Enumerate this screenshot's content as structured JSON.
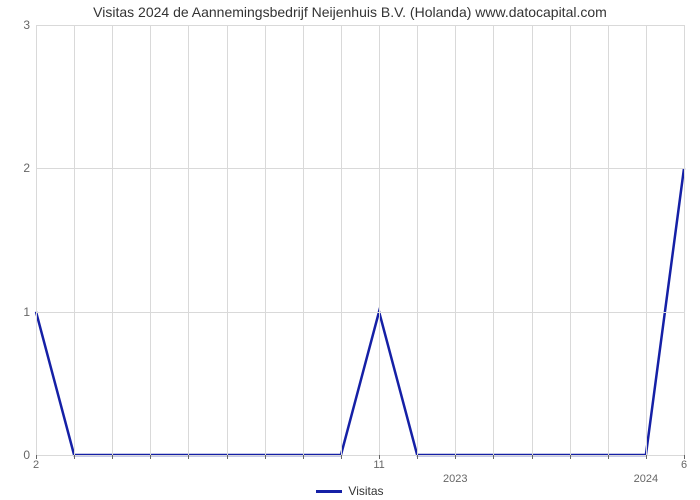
{
  "chart": {
    "type": "line",
    "title": "Visitas 2024 de Aannemingsbedrijf Neijenhuis B.V. (Holanda) www.datocapital.com",
    "title_fontsize": 14,
    "background_color": "#ffffff",
    "grid_color": "#d9d9d9",
    "axis_text_color": "#666666",
    "line_color": "#1520a6",
    "line_width": 2.5,
    "y_axis": {
      "min": 0,
      "max": 3,
      "ticks": [
        0,
        1,
        2,
        3
      ]
    },
    "x_axis": {
      "start": 0,
      "end": 17,
      "visible_labels": {
        "0": "2",
        "9": "11",
        "17": "6"
      },
      "year_markers": {
        "11": "2023",
        "16": "2024"
      },
      "major_month_indices": [
        0,
        11,
        16
      ],
      "total_months": 18
    },
    "series": {
      "name": "Visitas",
      "points": [
        {
          "x": 0,
          "y": 1
        },
        {
          "x": 1,
          "y": 0
        },
        {
          "x": 2,
          "y": 0
        },
        {
          "x": 3,
          "y": 0
        },
        {
          "x": 4,
          "y": 0
        },
        {
          "x": 5,
          "y": 0
        },
        {
          "x": 6,
          "y": 0
        },
        {
          "x": 7,
          "y": 0
        },
        {
          "x": 8,
          "y": 0
        },
        {
          "x": 9,
          "y": 1
        },
        {
          "x": 10,
          "y": 0
        },
        {
          "x": 11,
          "y": 0
        },
        {
          "x": 12,
          "y": 0
        },
        {
          "x": 13,
          "y": 0
        },
        {
          "x": 14,
          "y": 0
        },
        {
          "x": 15,
          "y": 0
        },
        {
          "x": 16,
          "y": 0
        },
        {
          "x": 17,
          "y": 2
        }
      ]
    },
    "legend": {
      "label": "Visitas"
    }
  }
}
